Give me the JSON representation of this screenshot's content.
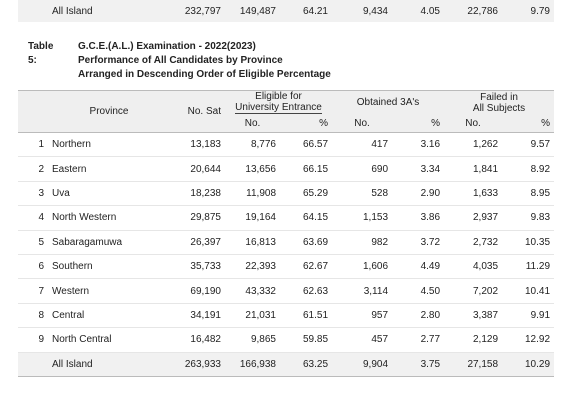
{
  "top_row": {
    "label": "All Island",
    "cells": [
      "232,797",
      "149,487",
      "64.21",
      "9,434",
      "4.05",
      "22,786",
      "9.79"
    ]
  },
  "caption": {
    "number": "Table 5:",
    "lines": [
      "G.C.E.(A.L.) Examination - 2022(2023)",
      "Performance of All Candidates by Province",
      "Arranged in Descending Order of Eligible Percentage"
    ]
  },
  "table": {
    "headers": {
      "province": "Province",
      "no_sat": "No. Sat",
      "eligible": [
        "Eligible for",
        "University Entrance"
      ],
      "obtained": "Obtained 3A's",
      "failed": [
        "Failed in",
        "All Subjects"
      ],
      "sub": [
        "No.",
        "%",
        "No.",
        "%",
        "No.",
        "%"
      ]
    },
    "rows": [
      {
        "index": "1",
        "province": "Northern",
        "cells": [
          "13,183",
          "8,776",
          "66.57",
          "417",
          "3.16",
          "1,262",
          "9.57"
        ]
      },
      {
        "index": "2",
        "province": "Eastern",
        "cells": [
          "20,644",
          "13,656",
          "66.15",
          "690",
          "3.34",
          "1,841",
          "8.92"
        ]
      },
      {
        "index": "3",
        "province": "Uva",
        "cells": [
          "18,238",
          "11,908",
          "65.29",
          "528",
          "2.90",
          "1,633",
          "8.95"
        ]
      },
      {
        "index": "4",
        "province": "North Western",
        "cells": [
          "29,875",
          "19,164",
          "64.15",
          "1,153",
          "3.86",
          "2,937",
          "9.83"
        ]
      },
      {
        "index": "5",
        "province": "Sabaragamuwa",
        "cells": [
          "26,397",
          "16,813",
          "63.69",
          "982",
          "3.72",
          "2,732",
          "10.35"
        ]
      },
      {
        "index": "6",
        "province": "Southern",
        "cells": [
          "35,733",
          "22,393",
          "62.67",
          "1,606",
          "4.49",
          "4,035",
          "11.29"
        ]
      },
      {
        "index": "7",
        "province": "Western",
        "cells": [
          "69,190",
          "43,332",
          "62.63",
          "3,114",
          "4.50",
          "7,202",
          "10.41"
        ]
      },
      {
        "index": "8",
        "province": "Central",
        "cells": [
          "34,191",
          "21,031",
          "61.51",
          "957",
          "2.80",
          "3,387",
          "9.91"
        ]
      },
      {
        "index": "9",
        "province": "North Central",
        "cells": [
          "16,482",
          "9,865",
          "59.85",
          "457",
          "2.77",
          "2,129",
          "12.92"
        ]
      }
    ],
    "total": {
      "label": "All Island",
      "cells": [
        "263,933",
        "166,938",
        "63.25",
        "9,904",
        "3.75",
        "27,158",
        "10.29"
      ]
    }
  }
}
